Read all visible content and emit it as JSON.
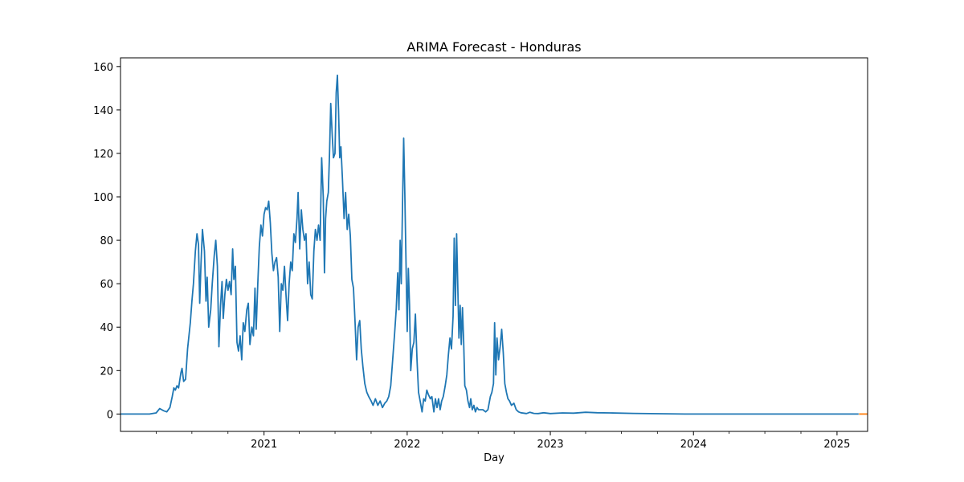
{
  "chart_data": {
    "type": "line",
    "title": "ARIMA Forecast - Honduras",
    "xlabel": "Day",
    "ylabel": "",
    "x_axis_type": "date",
    "xlim": [
      "2020-01-01",
      "2025-03-20"
    ],
    "ylim": [
      -8,
      164
    ],
    "y_ticks": [
      0,
      20,
      40,
      60,
      80,
      100,
      120,
      140,
      160
    ],
    "x_ticks": [
      {
        "date": "2021-01-01",
        "label": "2021"
      },
      {
        "date": "2022-01-01",
        "label": "2022"
      },
      {
        "date": "2023-01-01",
        "label": "2023"
      },
      {
        "date": "2024-01-01",
        "label": "2024"
      },
      {
        "date": "2025-01-01",
        "label": "2025"
      }
    ],
    "x_minor_ticks": [
      "2020-04-01",
      "2020-07-01",
      "2020-10-01",
      "2021-04-01",
      "2021-07-01",
      "2021-10-01",
      "2022-04-01",
      "2022-07-01",
      "2022-10-01",
      "2023-04-01",
      "2023-07-01",
      "2023-10-01",
      "2024-04-01",
      "2024-07-01",
      "2024-10-01"
    ],
    "grid": false,
    "series": [
      {
        "color": "#1f77b4",
        "points": [
          [
            "2020-01-01",
            0
          ],
          [
            "2020-03-15",
            0
          ],
          [
            "2020-04-01",
            0.5
          ],
          [
            "2020-04-10",
            2.5
          ],
          [
            "2020-04-20",
            1.5
          ],
          [
            "2020-04-28",
            1
          ],
          [
            "2020-05-06",
            3
          ],
          [
            "2020-05-12",
            8
          ],
          [
            "2020-05-16",
            12
          ],
          [
            "2020-05-20",
            11
          ],
          [
            "2020-05-24",
            13
          ],
          [
            "2020-05-28",
            12
          ],
          [
            "2020-06-03",
            19
          ],
          [
            "2020-06-06",
            21
          ],
          [
            "2020-06-10",
            15
          ],
          [
            "2020-06-15",
            16
          ],
          [
            "2020-06-20",
            30
          ],
          [
            "2020-06-27",
            42
          ],
          [
            "2020-07-01",
            52
          ],
          [
            "2020-07-05",
            60
          ],
          [
            "2020-07-10",
            75
          ],
          [
            "2020-07-14",
            83
          ],
          [
            "2020-07-18",
            78
          ],
          [
            "2020-07-21",
            51
          ],
          [
            "2020-07-24",
            68
          ],
          [
            "2020-07-28",
            85
          ],
          [
            "2020-08-02",
            75
          ],
          [
            "2020-08-06",
            52
          ],
          [
            "2020-08-09",
            63
          ],
          [
            "2020-08-13",
            40
          ],
          [
            "2020-08-18",
            48
          ],
          [
            "2020-08-22",
            60
          ],
          [
            "2020-08-27",
            73
          ],
          [
            "2020-08-31",
            80
          ],
          [
            "2020-09-04",
            68
          ],
          [
            "2020-09-08",
            31
          ],
          [
            "2020-09-12",
            50
          ],
          [
            "2020-09-16",
            61
          ],
          [
            "2020-09-19",
            44
          ],
          [
            "2020-09-23",
            55
          ],
          [
            "2020-09-27",
            62
          ],
          [
            "2020-10-01",
            57
          ],
          [
            "2020-10-05",
            61
          ],
          [
            "2020-10-09",
            55
          ],
          [
            "2020-10-13",
            76
          ],
          [
            "2020-10-16",
            62
          ],
          [
            "2020-10-20",
            68
          ],
          [
            "2020-10-24",
            33
          ],
          [
            "2020-10-28",
            29
          ],
          [
            "2020-11-01",
            36
          ],
          [
            "2020-11-05",
            25
          ],
          [
            "2020-11-09",
            42
          ],
          [
            "2020-11-13",
            38
          ],
          [
            "2020-11-18",
            48
          ],
          [
            "2020-11-22",
            51
          ],
          [
            "2020-11-26",
            32
          ],
          [
            "2020-12-01",
            40
          ],
          [
            "2020-12-05",
            36
          ],
          [
            "2020-12-09",
            58
          ],
          [
            "2020-12-12",
            39
          ],
          [
            "2020-12-16",
            60
          ],
          [
            "2020-12-20",
            77
          ],
          [
            "2020-12-24",
            87
          ],
          [
            "2020-12-28",
            82
          ],
          [
            "2021-01-01",
            92
          ],
          [
            "2021-01-05",
            95
          ],
          [
            "2021-01-09",
            94
          ],
          [
            "2021-01-13",
            98
          ],
          [
            "2021-01-17",
            88
          ],
          [
            "2021-01-21",
            74
          ],
          [
            "2021-01-25",
            66
          ],
          [
            "2021-01-29",
            70
          ],
          [
            "2021-02-02",
            72
          ],
          [
            "2021-02-06",
            63
          ],
          [
            "2021-02-10",
            38
          ],
          [
            "2021-02-14",
            60
          ],
          [
            "2021-02-18",
            57
          ],
          [
            "2021-02-22",
            68
          ],
          [
            "2021-02-26",
            55
          ],
          [
            "2021-03-02",
            43
          ],
          [
            "2021-03-06",
            60
          ],
          [
            "2021-03-10",
            70
          ],
          [
            "2021-03-14",
            66
          ],
          [
            "2021-03-18",
            83
          ],
          [
            "2021-03-22",
            79
          ],
          [
            "2021-03-26",
            90
          ],
          [
            "2021-03-29",
            102
          ],
          [
            "2021-04-02",
            76
          ],
          [
            "2021-04-06",
            94
          ],
          [
            "2021-04-10",
            85
          ],
          [
            "2021-04-14",
            80
          ],
          [
            "2021-04-18",
            83
          ],
          [
            "2021-04-22",
            60
          ],
          [
            "2021-04-26",
            70
          ],
          [
            "2021-04-30",
            55
          ],
          [
            "2021-05-04",
            53
          ],
          [
            "2021-05-08",
            75
          ],
          [
            "2021-05-12",
            85
          ],
          [
            "2021-05-16",
            80
          ],
          [
            "2021-05-20",
            87
          ],
          [
            "2021-05-24",
            80
          ],
          [
            "2021-05-28",
            118
          ],
          [
            "2021-06-01",
            100
          ],
          [
            "2021-06-04",
            65
          ],
          [
            "2021-06-07",
            90
          ],
          [
            "2021-06-10",
            98
          ],
          [
            "2021-06-14",
            102
          ],
          [
            "2021-06-17",
            120
          ],
          [
            "2021-06-20",
            143
          ],
          [
            "2021-06-24",
            128
          ],
          [
            "2021-06-27",
            118
          ],
          [
            "2021-07-01",
            120
          ],
          [
            "2021-07-04",
            148
          ],
          [
            "2021-07-07",
            156
          ],
          [
            "2021-07-10",
            140
          ],
          [
            "2021-07-13",
            118
          ],
          [
            "2021-07-16",
            123
          ],
          [
            "2021-07-20",
            108
          ],
          [
            "2021-07-24",
            90
          ],
          [
            "2021-07-28",
            102
          ],
          [
            "2021-08-01",
            85
          ],
          [
            "2021-08-05",
            92
          ],
          [
            "2021-08-09",
            82
          ],
          [
            "2021-08-13",
            62
          ],
          [
            "2021-08-17",
            58
          ],
          [
            "2021-08-21",
            43
          ],
          [
            "2021-08-25",
            25
          ],
          [
            "2021-08-29",
            40
          ],
          [
            "2021-09-02",
            43
          ],
          [
            "2021-09-06",
            30
          ],
          [
            "2021-09-10",
            22
          ],
          [
            "2021-09-15",
            14
          ],
          [
            "2021-09-20",
            10
          ],
          [
            "2021-09-25",
            8
          ],
          [
            "2021-10-01",
            6
          ],
          [
            "2021-10-06",
            4
          ],
          [
            "2021-10-12",
            7
          ],
          [
            "2021-10-18",
            4
          ],
          [
            "2021-10-24",
            6
          ],
          [
            "2021-10-30",
            3
          ],
          [
            "2021-11-05",
            5
          ],
          [
            "2021-11-10",
            6
          ],
          [
            "2021-11-15",
            8
          ],
          [
            "2021-11-20",
            13
          ],
          [
            "2021-11-25",
            25
          ],
          [
            "2021-11-30",
            37
          ],
          [
            "2021-12-04",
            48
          ],
          [
            "2021-12-08",
            65
          ],
          [
            "2021-12-11",
            48
          ],
          [
            "2021-12-14",
            80
          ],
          [
            "2021-12-17",
            60
          ],
          [
            "2021-12-20",
            95
          ],
          [
            "2021-12-23",
            127
          ],
          [
            "2021-12-26",
            102
          ],
          [
            "2021-12-29",
            70
          ],
          [
            "2022-01-01",
            38
          ],
          [
            "2022-01-04",
            67
          ],
          [
            "2022-01-07",
            50
          ],
          [
            "2022-01-10",
            20
          ],
          [
            "2022-01-14",
            30
          ],
          [
            "2022-01-18",
            33
          ],
          [
            "2022-01-22",
            46
          ],
          [
            "2022-01-26",
            25
          ],
          [
            "2022-01-30",
            10
          ],
          [
            "2022-02-03",
            6
          ],
          [
            "2022-02-08",
            1
          ],
          [
            "2022-02-12",
            7
          ],
          [
            "2022-02-16",
            6
          ],
          [
            "2022-02-20",
            11
          ],
          [
            "2022-02-24",
            9
          ],
          [
            "2022-03-01",
            7
          ],
          [
            "2022-03-05",
            8
          ],
          [
            "2022-03-10",
            1
          ],
          [
            "2022-03-14",
            7
          ],
          [
            "2022-03-18",
            3
          ],
          [
            "2022-03-22",
            7
          ],
          [
            "2022-03-26",
            2
          ],
          [
            "2022-03-30",
            6
          ],
          [
            "2022-04-03",
            8
          ],
          [
            "2022-04-08",
            13
          ],
          [
            "2022-04-12",
            18
          ],
          [
            "2022-04-16",
            27
          ],
          [
            "2022-04-20",
            35
          ],
          [
            "2022-04-24",
            30
          ],
          [
            "2022-04-28",
            45
          ],
          [
            "2022-05-01",
            81
          ],
          [
            "2022-05-04",
            50
          ],
          [
            "2022-05-07",
            83
          ],
          [
            "2022-05-10",
            60
          ],
          [
            "2022-05-13",
            35
          ],
          [
            "2022-05-16",
            50
          ],
          [
            "2022-05-19",
            32
          ],
          [
            "2022-05-22",
            49
          ],
          [
            "2022-05-25",
            33
          ],
          [
            "2022-05-28",
            13
          ],
          [
            "2022-06-01",
            11
          ],
          [
            "2022-06-05",
            6
          ],
          [
            "2022-06-09",
            3
          ],
          [
            "2022-06-12",
            7
          ],
          [
            "2022-06-16",
            2
          ],
          [
            "2022-06-20",
            4
          ],
          [
            "2022-06-24",
            1
          ],
          [
            "2022-06-28",
            3
          ],
          [
            "2022-07-02",
            2
          ],
          [
            "2022-07-07",
            2
          ],
          [
            "2022-07-13",
            2
          ],
          [
            "2022-07-20",
            1
          ],
          [
            "2022-07-26",
            2
          ],
          [
            "2022-08-01",
            8
          ],
          [
            "2022-08-05",
            10
          ],
          [
            "2022-08-09",
            14
          ],
          [
            "2022-08-12",
            42
          ],
          [
            "2022-08-15",
            18
          ],
          [
            "2022-08-18",
            35
          ],
          [
            "2022-08-22",
            25
          ],
          [
            "2022-08-26",
            31
          ],
          [
            "2022-08-30",
            39
          ],
          [
            "2022-09-03",
            28
          ],
          [
            "2022-09-07",
            14
          ],
          [
            "2022-09-11",
            10
          ],
          [
            "2022-09-15",
            7
          ],
          [
            "2022-09-19",
            6
          ],
          [
            "2022-09-24",
            4
          ],
          [
            "2022-09-30",
            5
          ],
          [
            "2022-10-06",
            2
          ],
          [
            "2022-10-12",
            1
          ],
          [
            "2022-10-18",
            0.6
          ],
          [
            "2022-10-25",
            0.4
          ],
          [
            "2022-11-01",
            0.2
          ],
          [
            "2022-11-10",
            0.8
          ],
          [
            "2022-11-20",
            0.3
          ],
          [
            "2022-12-01",
            0.2
          ],
          [
            "2022-12-15",
            0.6
          ],
          [
            "2023-01-01",
            0.2
          ],
          [
            "2023-02-01",
            0.5
          ],
          [
            "2023-03-01",
            0.4
          ],
          [
            "2023-04-01",
            0.8
          ],
          [
            "2023-05-01",
            0.6
          ],
          [
            "2023-06-01",
            0.5
          ],
          [
            "2023-08-01",
            0.3
          ],
          [
            "2023-12-10",
            0
          ],
          [
            "2025-02-25",
            0
          ]
        ]
      },
      {
        "color": "#ff7f0e",
        "points": [
          [
            "2025-02-26",
            0
          ],
          [
            "2025-03-20",
            0
          ]
        ]
      }
    ]
  }
}
